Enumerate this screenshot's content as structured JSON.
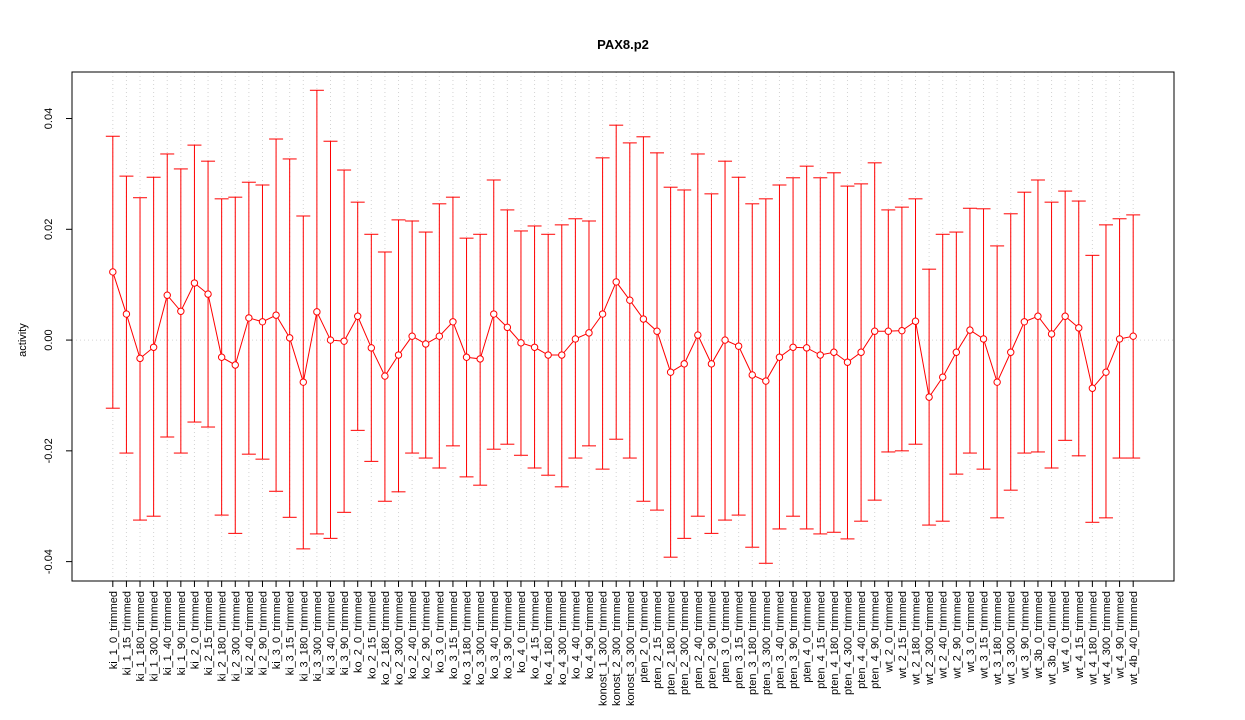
{
  "chart_data": {
    "type": "errorbar",
    "title": "PAX8.p2",
    "y_label": "activity",
    "categories": [
      "ki_1_0_trimmed",
      "ki_1_15_trimmed",
      "ki_1_180_trimmed",
      "ki_1_300_trimmed",
      "ki_1_40_trimmed",
      "ki_1_90_trimmed",
      "ki_2_0_trimmed",
      "ki_2_15_trimmed",
      "ki_2_180_trimmed",
      "ki_2_300_trimmed",
      "ki_2_40_trimmed",
      "ki_2_90_trimmed",
      "ki_3_0_trimmed",
      "ki_3_15_trimmed",
      "ki_3_180_trimmed",
      "ki_3_300_trimmed",
      "ki_3_40_trimmed",
      "ki_3_90_trimmed",
      "ko_2_0_trimmed",
      "ko_2_15_trimmed",
      "ko_2_180_trimmed",
      "ko_2_300_trimmed",
      "ko_2_40_trimmed",
      "ko_2_90_trimmed",
      "ko_3_0_trimmed",
      "ko_3_15_trimmed",
      "ko_3_180_trimmed",
      "ko_3_300_trimmed",
      "ko_3_40_trimmed",
      "ko_3_90_trimmed",
      "ko_4_0_trimmed",
      "ko_4_15_trimmed",
      "ko_4_180_trimmed",
      "ko_4_300_trimmed",
      "ko_4_40_trimmed",
      "ko_4_90_trimmed",
      "konost_1_300_trimmed",
      "konost_2_300_trimmed",
      "konost_3_300_trimmed",
      "pten_2_0_trimmed",
      "pten_2_15_trimmed",
      "pten_2_180_trimmed",
      "pten_2_300_trimmed",
      "pten_2_40_trimmed",
      "pten_2_90_trimmed",
      "pten_3_0_trimmed",
      "pten_3_15_trimmed",
      "pten_3_180_trimmed",
      "pten_3_300_trimmed",
      "pten_3_40_trimmed",
      "pten_3_90_trimmed",
      "pten_4_0_trimmed",
      "pten_4_15_trimmed",
      "pten_4_180_trimmed",
      "pten_4_300_trimmed",
      "pten_4_40_trimmed",
      "pten_4_90_trimmed",
      "wt_2_0_trimmed",
      "wt_2_15_trimmed",
      "wt_2_180_trimmed",
      "wt_2_300_trimmed",
      "wt_2_40_trimmed",
      "wt_2_90_trimmed",
      "wt_3_0_trimmed",
      "wt_3_15_trimmed",
      "wt_3_180_trimmed",
      "wt_3_300_trimmed",
      "wt_3_90_trimmed",
      "wt_3b_0_trimmed",
      "wt_3b_40_trimmed",
      "wt_4_0_trimmed",
      "wt_4_15_trimmed",
      "wt_4_180_trimmed",
      "wt_4_300_trimmed",
      "wt_4_90_trimmed",
      "wt_4b_40_trimmed"
    ],
    "values": [
      0.0123,
      0.0047,
      -0.0033,
      -0.0013,
      0.0081,
      0.0052,
      0.0103,
      0.0083,
      -0.0031,
      -0.0045,
      0.004,
      0.0033,
      0.0045,
      0.0004,
      -0.0076,
      0.0051,
      0.0,
      -0.0002,
      0.0043,
      -0.0014,
      -0.0065,
      -0.0027,
      0.0007,
      -0.0007,
      0.0007,
      0.0033,
      -0.0031,
      -0.0034,
      0.0047,
      0.0023,
      -0.0005,
      -0.0013,
      -0.0027,
      -0.0027,
      0.0002,
      0.0013,
      0.0047,
      0.0105,
      0.0072,
      0.0038,
      0.0016,
      -0.0058,
      -0.0043,
      0.0009,
      -0.0043,
      0.0,
      -0.0011,
      -0.0063,
      -0.0074,
      -0.0031,
      -0.0013,
      -0.0014,
      -0.0027,
      -0.0022,
      -0.004,
      -0.0022,
      0.0016,
      0.0016,
      0.0017,
      0.0034,
      -0.0103,
      -0.0067,
      -0.0022,
      0.0018,
      0.0002,
      -0.0076,
      -0.0022,
      0.0033,
      0.0043,
      0.0011,
      0.0043,
      0.0022,
      -0.0087,
      -0.0058,
      0.0002,
      0.0007
    ],
    "upper": [
      0.0368,
      0.0296,
      0.0257,
      0.0294,
      0.0336,
      0.0309,
      0.0352,
      0.0323,
      0.0255,
      0.0258,
      0.0285,
      0.028,
      0.0363,
      0.0327,
      0.0224,
      0.0451,
      0.0359,
      0.0307,
      0.0249,
      0.0191,
      0.0159,
      0.0217,
      0.0215,
      0.0195,
      0.0246,
      0.0258,
      0.0184,
      0.0191,
      0.0289,
      0.0235,
      0.0197,
      0.0206,
      0.0191,
      0.0208,
      0.0219,
      0.0215,
      0.0329,
      0.0388,
      0.0356,
      0.0367,
      0.0338,
      0.0276,
      0.0271,
      0.0336,
      0.0264,
      0.0323,
      0.0294,
      0.0246,
      0.0255,
      0.028,
      0.0293,
      0.0314,
      0.0293,
      0.0302,
      0.0278,
      0.0282,
      0.032,
      0.0235,
      0.024,
      0.0255,
      0.0128,
      0.0191,
      0.0195,
      0.0238,
      0.0237,
      0.017,
      0.0228,
      0.0267,
      0.0289,
      0.0249,
      0.0269,
      0.0251,
      0.0153,
      0.0208,
      0.0219,
      0.0226
    ],
    "lower": [
      -0.0123,
      -0.0204,
      -0.0325,
      -0.0318,
      -0.0175,
      -0.0204,
      -0.0148,
      -0.0157,
      -0.0316,
      -0.0349,
      -0.0206,
      -0.0215,
      -0.0273,
      -0.032,
      -0.0377,
      -0.035,
      -0.0358,
      -0.0311,
      -0.0163,
      -0.0219,
      -0.0291,
      -0.0274,
      -0.0204,
      -0.0213,
      -0.0231,
      -0.0191,
      -0.0247,
      -0.0262,
      -0.0197,
      -0.0188,
      -0.0208,
      -0.0231,
      -0.0244,
      -0.0265,
      -0.0213,
      -0.0191,
      -0.0233,
      -0.0179,
      -0.0213,
      -0.0291,
      -0.0307,
      -0.0392,
      -0.0358,
      -0.0318,
      -0.0349,
      -0.0325,
      -0.0316,
      -0.0374,
      -0.0403,
      -0.0341,
      -0.0318,
      -0.0341,
      -0.035,
      -0.0347,
      -0.0359,
      -0.0327,
      -0.0289,
      -0.0202,
      -0.02,
      -0.0188,
      -0.0334,
      -0.0327,
      -0.0242,
      -0.0204,
      -0.0233,
      -0.0321,
      -0.0271,
      -0.0204,
      -0.0202,
      -0.0231,
      -0.0181,
      -0.0209,
      -0.0329,
      -0.0321,
      -0.0213,
      -0.0213
    ],
    "color": "#ff0000",
    "ylim": [
      -0.0435,
      0.0484
    ],
    "yticks": [
      -0.04,
      -0.02,
      {
        "value": 0,
        "label": "0.00"
      },
      0.02,
      0.04
    ],
    "grid": true,
    "reference_line": 0
  }
}
